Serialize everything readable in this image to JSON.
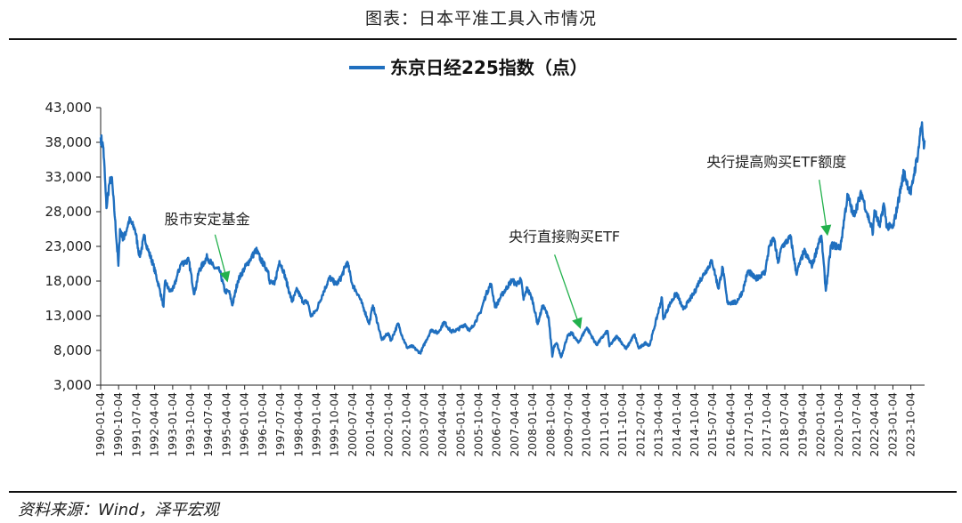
{
  "caption": "图表：日本平准工具入市情况",
  "source": "资料来源：Wind，泽平宏观",
  "colors": {
    "series": "#1f6fbf",
    "arrow": "#22b14c",
    "axis": "#222222"
  },
  "chart_data": {
    "type": "line",
    "title": "",
    "xlabel": "",
    "ylabel": "",
    "ylim": [
      3000,
      43000
    ],
    "yticks": [
      3000,
      8000,
      13000,
      18000,
      23000,
      28000,
      33000,
      38000,
      43000
    ],
    "ytick_labels": [
      "3,000",
      "8,000",
      "13,000",
      "18,000",
      "23,000",
      "28,000",
      "33,000",
      "38,000",
      "43,000"
    ],
    "xlim": [
      "1990-01-04",
      "2024-04-30"
    ],
    "xtick_labels": [
      "1990-01-04",
      "1990-10-04",
      "1991-07-04",
      "1992-04-04",
      "1993-01-04",
      "1993-10-04",
      "1994-07-04",
      "1995-04-04",
      "1996-01-04",
      "1996-10-04",
      "1997-07-04",
      "1998-04-04",
      "1999-01-04",
      "1999-10-04",
      "2000-07-04",
      "2001-04-04",
      "2002-01-04",
      "2002-10-04",
      "2003-07-04",
      "2004-04-04",
      "2005-01-04",
      "2005-10-04",
      "2006-07-04",
      "2007-04-04",
      "2008-01-04",
      "2008-10-04",
      "2009-07-04",
      "2010-04-04",
      "2011-01-04",
      "2011-10-04",
      "2012-07-04",
      "2013-04-04",
      "2014-01-04",
      "2014-10-04",
      "2015-07-04",
      "2016-04-04",
      "2017-01-04",
      "2017-10-04",
      "2018-07-04",
      "2019-04-04",
      "2020-01-04",
      "2020-10-04",
      "2021-07-04",
      "2022-04-04",
      "2023-01-04",
      "2023-10-04"
    ],
    "legend": {
      "position": "top-center",
      "entries": [
        "东京日经225指数（点）"
      ]
    },
    "grid": false,
    "series": [
      {
        "name": "东京日经225指数（点）",
        "points": [
          [
            "1990-01-04",
            38700
          ],
          [
            "1990-02-15",
            37200
          ],
          [
            "1990-04-02",
            28500
          ],
          [
            "1990-05-15",
            32000
          ],
          [
            "1990-06-20",
            33000
          ],
          [
            "1990-08-10",
            27000
          ],
          [
            "1990-10-01",
            20200
          ],
          [
            "1990-10-25",
            25500
          ],
          [
            "1990-12-20",
            24000
          ],
          [
            "1991-03-15",
            26800
          ],
          [
            "1991-06-10",
            25500
          ],
          [
            "1991-08-20",
            21500
          ],
          [
            "1991-11-01",
            24500
          ],
          [
            "1991-12-25",
            22500
          ],
          [
            "1992-03-10",
            20500
          ],
          [
            "1992-06-15",
            17000
          ],
          [
            "1992-08-18",
            14300
          ],
          [
            "1992-09-10",
            18000
          ],
          [
            "1992-11-20",
            16500
          ],
          [
            "1993-01-20",
            17000
          ],
          [
            "1993-03-05",
            18500
          ],
          [
            "1993-05-10",
            20500
          ],
          [
            "1993-09-05",
            21000
          ],
          [
            "1993-11-29",
            16100
          ],
          [
            "1994-02-10",
            19500
          ],
          [
            "1994-06-13",
            21500
          ],
          [
            "1994-09-20",
            20000
          ],
          [
            "1994-12-20",
            19500
          ],
          [
            "1995-03-10",
            16500
          ],
          [
            "1995-05-10",
            16500
          ],
          [
            "1995-07-03",
            14500
          ],
          [
            "1995-09-20",
            18000
          ],
          [
            "1995-12-29",
            19800
          ],
          [
            "1996-03-20",
            21000
          ],
          [
            "1996-06-26",
            22500
          ],
          [
            "1996-09-10",
            21000
          ],
          [
            "1996-12-30",
            19400
          ],
          [
            "1997-01-15",
            18000
          ],
          [
            "1997-04-01",
            17500
          ],
          [
            "1997-06-16",
            20900
          ],
          [
            "1997-08-15",
            19500
          ],
          [
            "1997-12-25",
            15000
          ],
          [
            "1998-03-10",
            16800
          ],
          [
            "1998-06-10",
            15000
          ],
          [
            "1998-08-20",
            15000
          ],
          [
            "1998-10-09",
            12900
          ],
          [
            "1998-12-30",
            13800
          ],
          [
            "1999-03-30",
            16000
          ],
          [
            "1999-07-20",
            18500
          ],
          [
            "1999-10-30",
            17500
          ],
          [
            "2000-01-10",
            18500
          ],
          [
            "2000-04-12",
            20800
          ],
          [
            "2000-06-30",
            17500
          ],
          [
            "2000-09-30",
            16000
          ],
          [
            "2000-12-30",
            13800
          ],
          [
            "2001-03-13",
            11800
          ],
          [
            "2001-05-07",
            14500
          ],
          [
            "2001-07-30",
            11500
          ],
          [
            "2001-09-20",
            9500
          ],
          [
            "2001-12-28",
            10500
          ],
          [
            "2002-02-06",
            9400
          ],
          [
            "2002-05-27",
            11900
          ],
          [
            "2002-07-30",
            10000
          ],
          [
            "2002-10-10",
            8400
          ],
          [
            "2002-12-30",
            8600
          ],
          [
            "2003-03-10",
            8000
          ],
          [
            "2003-04-28",
            7600
          ],
          [
            "2003-07-30",
            9500
          ],
          [
            "2003-10-15",
            11000
          ],
          [
            "2004-01-20",
            10500
          ],
          [
            "2004-04-26",
            12100
          ],
          [
            "2004-08-10",
            10700
          ],
          [
            "2004-11-20",
            11000
          ],
          [
            "2005-03-10",
            11800
          ],
          [
            "2005-05-17",
            10800
          ],
          [
            "2005-08-05",
            12000
          ],
          [
            "2005-10-30",
            13500
          ],
          [
            "2006-01-20",
            16000
          ],
          [
            "2006-04-07",
            17600
          ],
          [
            "2006-06-13",
            14200
          ],
          [
            "2006-09-20",
            16000
          ],
          [
            "2007-02-26",
            18200
          ],
          [
            "2007-04-20",
            17500
          ],
          [
            "2007-07-09",
            18200
          ],
          [
            "2007-08-17",
            15300
          ],
          [
            "2007-10-10",
            17000
          ],
          [
            "2007-12-30",
            15300
          ],
          [
            "2008-03-17",
            11800
          ],
          [
            "2008-06-06",
            14500
          ],
          [
            "2008-09-01",
            12800
          ],
          [
            "2008-10-28",
            7100
          ],
          [
            "2008-11-20",
            8500
          ],
          [
            "2009-01-05",
            9000
          ],
          [
            "2009-03-10",
            7000
          ],
          [
            "2009-06-12",
            10000
          ],
          [
            "2009-08-20",
            10500
          ],
          [
            "2009-11-27",
            9100
          ],
          [
            "2010-04-05",
            11300
          ],
          [
            "2010-08-31",
            8800
          ],
          [
            "2010-12-30",
            10300
          ],
          [
            "2011-02-17",
            10800
          ],
          [
            "2011-03-15",
            8600
          ],
          [
            "2011-07-08",
            10100
          ],
          [
            "2011-11-25",
            8200
          ],
          [
            "2012-03-27",
            10300
          ],
          [
            "2012-06-04",
            8300
          ],
          [
            "2012-09-20",
            9100
          ],
          [
            "2012-11-15",
            8700
          ],
          [
            "2013-01-15",
            10900
          ],
          [
            "2013-05-22",
            15600
          ],
          [
            "2013-06-13",
            12500
          ],
          [
            "2013-09-10",
            14500
          ],
          [
            "2013-12-30",
            16300
          ],
          [
            "2014-04-11",
            13900
          ],
          [
            "2014-09-25",
            16300
          ],
          [
            "2014-12-08",
            17900
          ],
          [
            "2015-06-24",
            20900
          ],
          [
            "2015-09-29",
            16900
          ],
          [
            "2015-12-01",
            20000
          ],
          [
            "2016-02-12",
            14900
          ],
          [
            "2016-06-24",
            14900
          ],
          [
            "2016-09-30",
            16500
          ],
          [
            "2016-12-21",
            19500
          ],
          [
            "2017-04-14",
            18300
          ],
          [
            "2017-09-08",
            19300
          ],
          [
            "2017-11-09",
            23000
          ],
          [
            "2018-01-23",
            24100
          ],
          [
            "2018-03-23",
            20600
          ],
          [
            "2018-05-21",
            23000
          ],
          [
            "2018-10-02",
            24300
          ],
          [
            "2018-12-26",
            19100
          ],
          [
            "2019-04-24",
            22300
          ],
          [
            "2019-08-26",
            20200
          ],
          [
            "2019-12-17",
            24100
          ],
          [
            "2020-01-17",
            24000
          ],
          [
            "2020-03-19",
            16600
          ],
          [
            "2020-06-08",
            23200
          ],
          [
            "2020-10-30",
            22900
          ],
          [
            "2020-12-30",
            27400
          ],
          [
            "2021-02-16",
            30400
          ],
          [
            "2021-05-13",
            27400
          ],
          [
            "2021-09-14",
            30700
          ],
          [
            "2021-12-03",
            27900
          ],
          [
            "2022-03-08",
            25000
          ],
          [
            "2022-03-29",
            28200
          ],
          [
            "2022-06-20",
            25800
          ],
          [
            "2022-08-17",
            29200
          ],
          [
            "2022-10-03",
            25900
          ],
          [
            "2023-01-05",
            25700
          ],
          [
            "2023-03-09",
            28600
          ],
          [
            "2023-06-19",
            33700
          ],
          [
            "2023-10-04",
            30500
          ],
          [
            "2023-11-20",
            33400
          ],
          [
            "2024-01-22",
            36500
          ],
          [
            "2024-02-22",
            39100
          ],
          [
            "2024-03-22",
            40900
          ],
          [
            "2024-04-19",
            37100
          ],
          [
            "2024-04-30",
            38300
          ]
        ]
      }
    ],
    "annotations": [
      {
        "text": "股市安定基金",
        "text_x": "1992-09-01",
        "text_y": 26200,
        "arrow_from": [
          "1994-10-10",
          24700
        ],
        "arrow_to": [
          "1995-04-20",
          17800
        ]
      },
      {
        "text": "央行直接购买ETF",
        "text_x": "2007-01-01",
        "text_y": 23700,
        "arrow_from": [
          "2008-12-01",
          21800
        ],
        "arrow_to": [
          "2010-01-01",
          11100
        ]
      },
      {
        "text": "央行提高购买ETF额度",
        "text_x": "2015-04-01",
        "text_y": 34500,
        "arrow_from": [
          "2019-12-10",
          32600
        ],
        "arrow_to": [
          "2020-04-15",
          24500
        ]
      }
    ]
  }
}
